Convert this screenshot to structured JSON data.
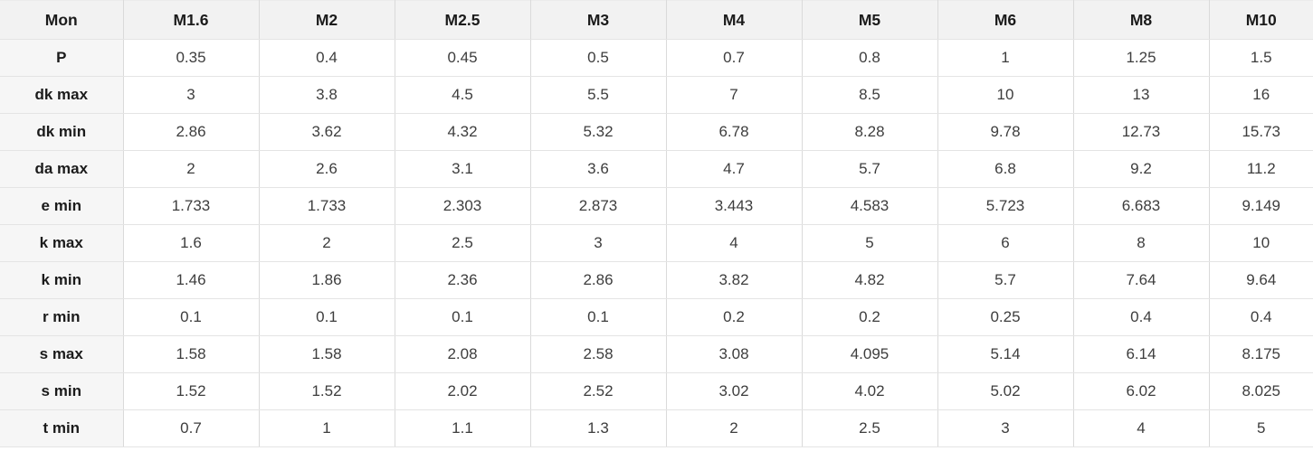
{
  "table": {
    "corner_label": "Mon",
    "columns": [
      "M1.6",
      "M2",
      "M2.5",
      "M3",
      "M4",
      "M5",
      "M6",
      "M8",
      "M10"
    ],
    "rows": [
      {
        "label": "P",
        "values": [
          "0.35",
          "0.4",
          "0.45",
          "0.5",
          "0.7",
          "0.8",
          "1",
          "1.25",
          "1.5"
        ]
      },
      {
        "label": "dk max",
        "values": [
          "3",
          "3.8",
          "4.5",
          "5.5",
          "7",
          "8.5",
          "10",
          "13",
          "16"
        ]
      },
      {
        "label": "dk min",
        "values": [
          "2.86",
          "3.62",
          "4.32",
          "5.32",
          "6.78",
          "8.28",
          "9.78",
          "12.73",
          "15.73"
        ]
      },
      {
        "label": "da max",
        "values": [
          "2",
          "2.6",
          "3.1",
          "3.6",
          "4.7",
          "5.7",
          "6.8",
          "9.2",
          "11.2"
        ]
      },
      {
        "label": "e min",
        "values": [
          "1.733",
          "1.733",
          "2.303",
          "2.873",
          "3.443",
          "4.583",
          "5.723",
          "6.683",
          "9.149"
        ]
      },
      {
        "label": "k max",
        "values": [
          "1.6",
          "2",
          "2.5",
          "3",
          "4",
          "5",
          "6",
          "8",
          "10"
        ]
      },
      {
        "label": "k min",
        "values": [
          "1.46",
          "1.86",
          "2.36",
          "2.86",
          "3.82",
          "4.82",
          "5.7",
          "7.64",
          "9.64"
        ]
      },
      {
        "label": "r min",
        "values": [
          "0.1",
          "0.1",
          "0.1",
          "0.1",
          "0.2",
          "0.2",
          "0.25",
          "0.4",
          "0.4"
        ]
      },
      {
        "label": "s max",
        "values": [
          "1.58",
          "1.58",
          "2.08",
          "2.58",
          "3.08",
          "4.095",
          "5.14",
          "6.14",
          "8.175"
        ]
      },
      {
        "label": "s min",
        "values": [
          "1.52",
          "1.52",
          "2.02",
          "2.52",
          "3.02",
          "4.02",
          "5.02",
          "6.02",
          "8.025"
        ]
      },
      {
        "label": "t min",
        "values": [
          "0.7",
          "1",
          "1.1",
          "1.3",
          "2",
          "2.5",
          "3",
          "4",
          "5"
        ]
      }
    ],
    "colors": {
      "header_bg": "#f2f2f2",
      "label_column_bg": "#f6f6f6",
      "cell_bg": "#ffffff",
      "border": "#dadada",
      "header_text": "#1b1b1b",
      "cell_text": "#3d3d3d"
    }
  }
}
